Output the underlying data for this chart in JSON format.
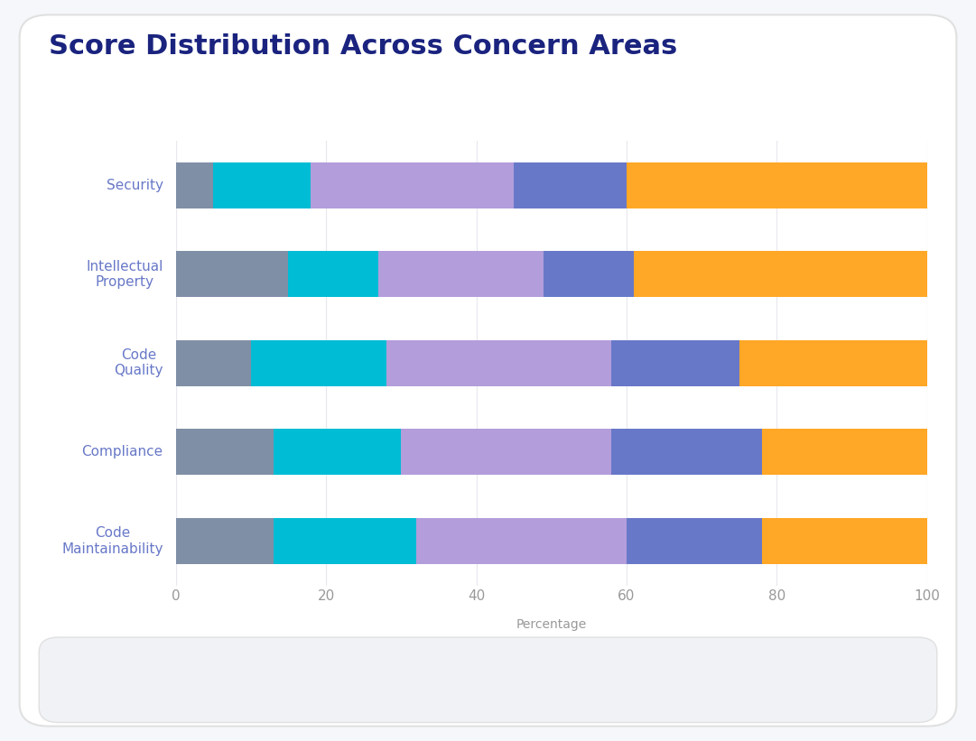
{
  "title": "Score Distribution Across Concern Areas",
  "categories": [
    "Security",
    "Intellectual\nProperty",
    "Code\nQuality",
    "Compliance",
    "Code\nMaintainability"
  ],
  "scores": {
    "1.0": [
      5,
      15,
      10,
      13,
      13
    ],
    "2.0": [
      13,
      12,
      18,
      17,
      19
    ],
    "3.0": [
      27,
      22,
      30,
      28,
      28
    ],
    "4.0": [
      15,
      12,
      17,
      20,
      18
    ],
    "5.0": [
      40,
      39,
      25,
      22,
      22
    ]
  },
  "colors": {
    "1.0": "#7F8FA6",
    "2.0": "#00BCD4",
    "3.0": "#B39DDB",
    "4.0": "#6878C8",
    "5.0": "#FFA726"
  },
  "xlabel": "Percentage",
  "xlim": [
    0,
    100
  ],
  "xticks": [
    0,
    20,
    40,
    60,
    80,
    100
  ],
  "background_color": "#F5F7FA",
  "plot_background": "#FFFFFF",
  "card_background": "#FFFFFF",
  "legend_bg": "#F0F2F5",
  "title_color": "#1A237E",
  "label_color": "#6878C8",
  "tick_color": "#999999",
  "title_fontsize": 22,
  "label_fontsize": 11,
  "bar_height": 0.52
}
